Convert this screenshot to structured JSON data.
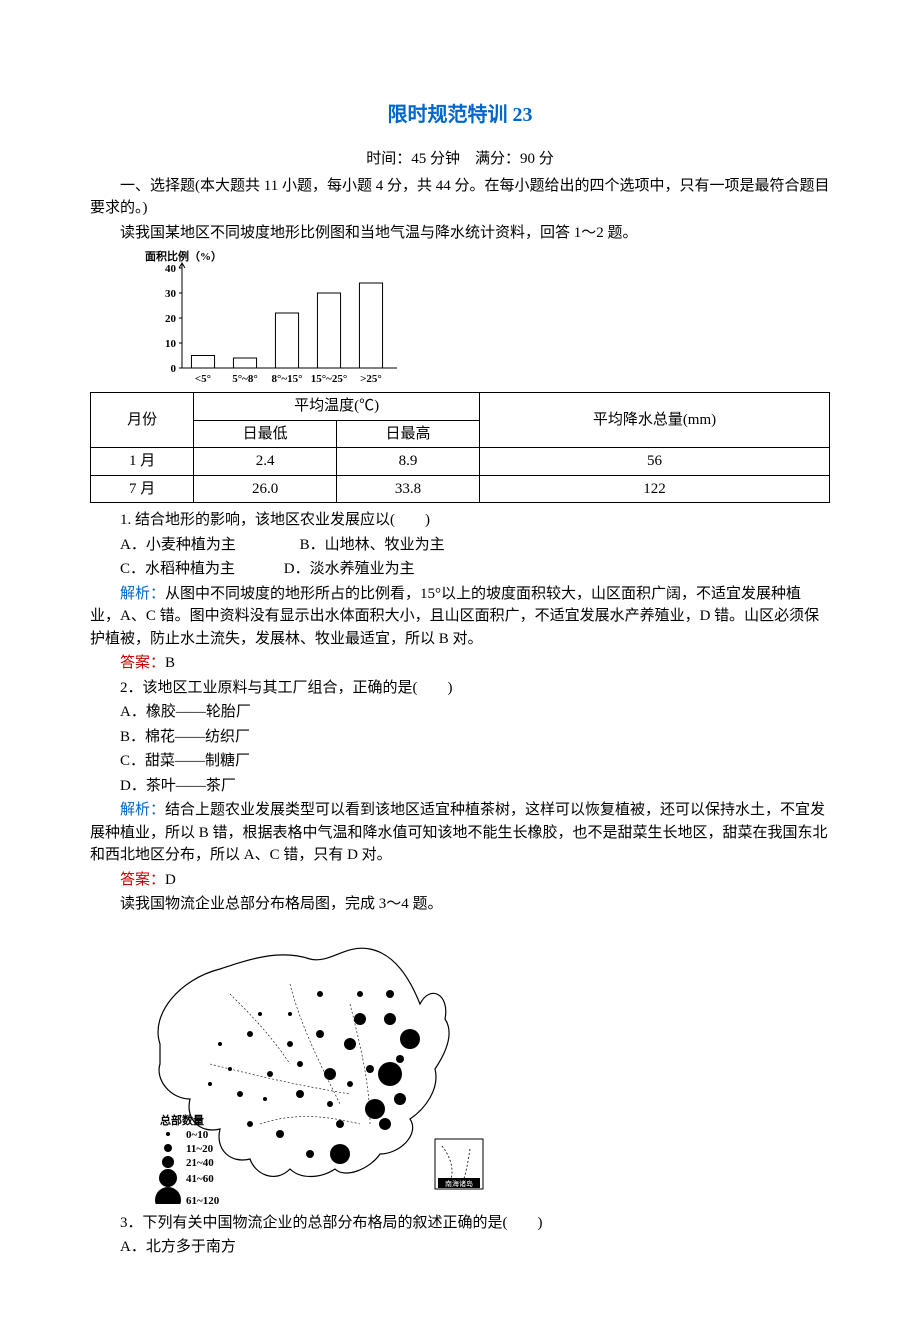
{
  "title": "限时规范特训 23",
  "exam_info": "时间：45 分钟　满分：90 分",
  "section1_intro": "一、选择题(本大题共 11 小题，每小题 4 分，共 44 分。在每小题给出的四个选项中，只有一项是最符合题目要求的。)",
  "q12_intro": "读我国某地区不同坡度地形比例图和当地气温与降水统计资料，回答 1～2 题。",
  "bar_chart": {
    "y_label": "面积比例（%）",
    "y_ticks": [
      0,
      10,
      20,
      30,
      40
    ],
    "x_labels": [
      "<5°",
      "5°~8°",
      "8°~15°",
      "15°~25°",
      ">25°"
    ],
    "values": [
      5,
      4,
      22,
      30,
      34
    ],
    "axis_color": "#000000",
    "bar_fill": "#ffffff",
    "bar_stroke": "#000000",
    "font_size": 11
  },
  "data_table": {
    "header": {
      "month": "月份",
      "avg_temp": "平均温度(℃)",
      "min": "日最低",
      "max": "日最高",
      "precip": "平均降水总量(mm)"
    },
    "rows": [
      {
        "month": "1 月",
        "min": "2.4",
        "max": "8.9",
        "precip": "56"
      },
      {
        "month": "7 月",
        "min": "26.0",
        "max": "33.8",
        "precip": "122"
      }
    ]
  },
  "q1": {
    "stem": "1. 结合地形的影响，该地区农业发展应以(　　)",
    "optA": "A．小麦种植为主",
    "optB": "B．山地林、牧业为主",
    "optC": "C．水稻种植为主",
    "optD": "D．淡水养殖业为主",
    "analysis_label": "解析：",
    "analysis": "从图中不同坡度的地形所占的比例看，15°以上的坡度面积较大，山区面积广阔，不适宜发展种植业，A、C 错。图中资料没有显示出水体面积大小，且山区面积广，不适宜发展水产养殖业，D 错。山区必须保护植被，防止水土流失，发展林、牧业最适宜，所以 B 对。",
    "answer_label": "答案：",
    "answer": "B"
  },
  "q2": {
    "stem": "2．该地区工业原料与其工厂组合，正确的是(　　)",
    "optA": "A．橡胶——轮胎厂",
    "optB": "B．棉花——纺织厂",
    "optC": "C．甜菜——制糖厂",
    "optD": "D．茶叶——茶厂",
    "analysis_label": "解析：",
    "analysis": "结合上题农业发展类型可以看到该地区适宜种植茶树，这样可以恢复植被，还可以保持水土，不宜发展种植业，所以 B 错，根据表格中气温和降水值可知该地不能生长橡胶，也不是甜菜生长地区，甜菜在我国东北和西北地区分布，所以 A、C 错，只有 D 对。",
    "answer_label": "答案：",
    "answer": "D"
  },
  "q34_intro": "读我国物流企业总部分布格局图，完成 3～4 题。",
  "map": {
    "outline_color": "#000000",
    "bg_color": "#ffffff",
    "legend_title": "总部数量",
    "legend": [
      {
        "label": "0~10",
        "r": 2
      },
      {
        "label": "11~20",
        "r": 4
      },
      {
        "label": "21~40",
        "r": 6
      },
      {
        "label": "41~60",
        "r": 9
      },
      {
        "label": "61~120",
        "r": 13
      }
    ],
    "inset_label": "南海诸岛"
  },
  "q3": {
    "stem": "3．下列有关中国物流企业的总部分布格局的叙述正确的是(　　)",
    "optA": "A．北方多于南方"
  }
}
